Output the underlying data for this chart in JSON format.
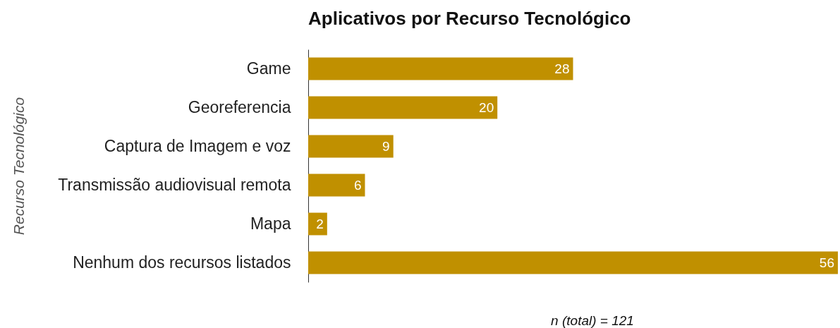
{
  "chart_data": {
    "type": "bar",
    "orientation": "horizontal",
    "title": "Aplicativos por Recurso Tecnológico",
    "ylabel": "Recurso Tecnológico",
    "categories": [
      "Game",
      "Georeferencia",
      "Captura de Imagem e voz",
      "Transmissão audiovisual remota",
      "Mapa",
      "Nenhum dos recursos listados"
    ],
    "values": [
      28,
      20,
      9,
      6,
      2,
      56
    ],
    "color": "#c09000",
    "data_labels": true,
    "annotations": [
      "n (total) = 121"
    ]
  }
}
